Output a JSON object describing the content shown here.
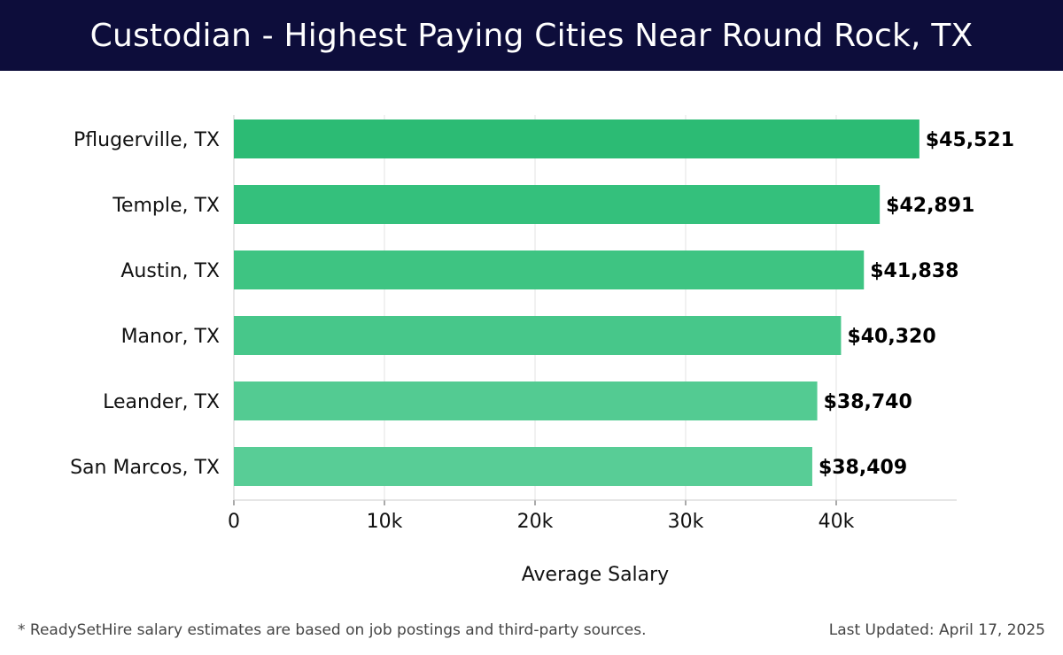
{
  "header": {
    "title": "Custodian - Highest Paying Cities Near Round Rock, TX"
  },
  "chart_data": {
    "type": "bar",
    "orientation": "horizontal",
    "categories": [
      "Pflugerville, TX",
      "Temple, TX",
      "Austin, TX",
      "Manor, TX",
      "Leander, TX",
      "San Marcos, TX"
    ],
    "values": [
      45521,
      42891,
      41838,
      40320,
      38740,
      38409
    ],
    "value_labels": [
      "$45,521",
      "$42,891",
      "$41,838",
      "$40,320",
      "$38,740",
      "$38,409"
    ],
    "xlabel": "Average Salary",
    "ylabel": "",
    "xlim": [
      0,
      48000
    ],
    "x_ticks": [
      0,
      10000,
      20000,
      30000,
      40000
    ],
    "x_tick_labels": [
      "0",
      "10k",
      "20k",
      "30k",
      "40k"
    ],
    "grid": "vertical",
    "colors": [
      "#2cbb74",
      "#34c07c",
      "#3ec482",
      "#47c78a",
      "#53cb92",
      "#58cd96"
    ]
  },
  "footer": {
    "note": "* ReadySetHire salary estimates are based on job postings and third-party sources.",
    "updated": "Last Updated: April 17, 2025"
  }
}
